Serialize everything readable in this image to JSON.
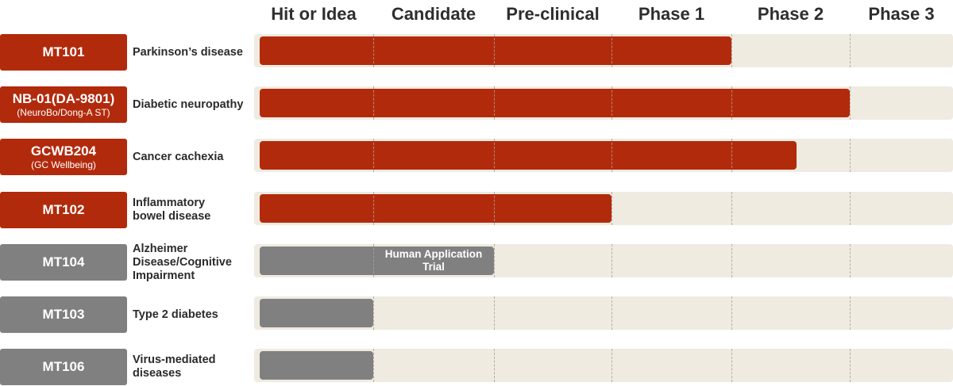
{
  "colors": {
    "active": "#b22a0c",
    "inactive": "#808080",
    "track": "#efebe1"
  },
  "chart_data": {
    "type": "bar",
    "orientation": "horizontal",
    "stages": [
      "Hit or Idea",
      "Candidate",
      "Pre-clinical",
      "Phase 1",
      "Phase 2",
      "Phase 3"
    ],
    "rows": [
      {
        "code": "MT101",
        "sub": "",
        "indication": [
          "Parkinson’s disease"
        ],
        "progress_stages": 4.0,
        "status": "active",
        "bar_label": ""
      },
      {
        "code": "NB-01(DA-9801)",
        "sub": "(NeuroBo/Dong-A ST)",
        "indication": [
          "Diabetic neuropathy"
        ],
        "progress_stages": 5.0,
        "status": "active",
        "bar_label": ""
      },
      {
        "code": "GCWB204",
        "sub": "(GC Wellbeing)",
        "indication": [
          "Cancer cachexia"
        ],
        "progress_stages": 4.55,
        "status": "active",
        "bar_label": ""
      },
      {
        "code": "MT102",
        "sub": "",
        "indication": [
          "Inflammatory",
          "bowel disease"
        ],
        "progress_stages": 3.0,
        "status": "active",
        "bar_label": ""
      },
      {
        "code": "MT104",
        "sub": "",
        "indication": [
          "Alzheimer",
          "Disease/Cognitive",
          "Impairment"
        ],
        "progress_stages": 2.0,
        "status": "inactive",
        "bar_label": "Human Application Trial"
      },
      {
        "code": "MT103",
        "sub": "",
        "indication": [
          "Type 2 diabetes"
        ],
        "progress_stages": 1.0,
        "status": "inactive",
        "bar_label": ""
      },
      {
        "code": "MT106",
        "sub": "",
        "indication": [
          "Virus-mediated",
          "diseases"
        ],
        "progress_stages": 1.0,
        "status": "inactive",
        "bar_label": ""
      }
    ]
  }
}
